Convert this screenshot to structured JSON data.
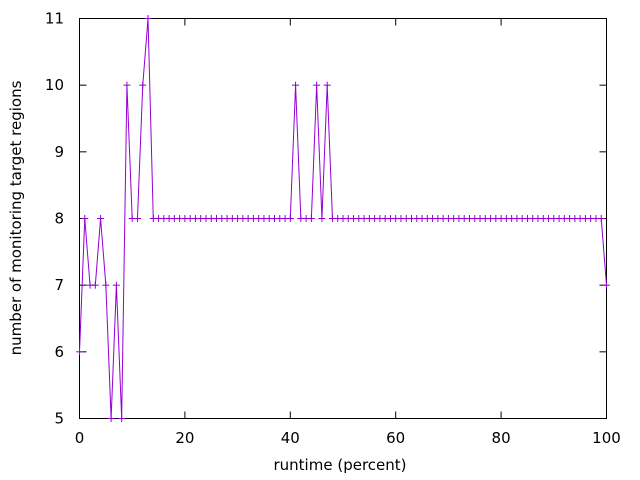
{
  "chart_data": {
    "type": "line",
    "title": "",
    "xlabel": "runtime (percent)",
    "ylabel": "number of monitoring target regions",
    "xlim": [
      0,
      100
    ],
    "ylim": [
      5,
      11
    ],
    "xticks": [
      0,
      20,
      40,
      60,
      80,
      100
    ],
    "yticks": [
      5,
      6,
      7,
      8,
      9,
      10,
      11
    ],
    "grid": false,
    "marker": "plus",
    "series": [
      {
        "color": "#9400d3",
        "x": [
          0,
          1,
          2,
          3,
          4,
          5,
          6,
          7,
          8,
          9,
          10,
          11,
          12,
          13,
          14,
          15,
          16,
          17,
          18,
          19,
          20,
          21,
          22,
          23,
          24,
          25,
          26,
          27,
          28,
          29,
          30,
          31,
          32,
          33,
          34,
          35,
          36,
          37,
          38,
          39,
          40,
          41,
          42,
          43,
          44,
          45,
          46,
          47,
          48,
          49,
          50,
          51,
          52,
          53,
          54,
          55,
          56,
          57,
          58,
          59,
          60,
          61,
          62,
          63,
          64,
          65,
          66,
          67,
          68,
          69,
          70,
          71,
          72,
          73,
          74,
          75,
          76,
          77,
          78,
          79,
          80,
          81,
          82,
          83,
          84,
          85,
          86,
          87,
          88,
          89,
          90,
          91,
          92,
          93,
          94,
          95,
          96,
          97,
          98,
          99,
          100
        ],
        "y": [
          6,
          8,
          7,
          7,
          8,
          7,
          5,
          7,
          5,
          10,
          8,
          8,
          10,
          11,
          8,
          8,
          8,
          8,
          8,
          8,
          8,
          8,
          8,
          8,
          8,
          8,
          8,
          8,
          8,
          8,
          8,
          8,
          8,
          8,
          8,
          8,
          8,
          8,
          8,
          8,
          8,
          10,
          8,
          8,
          8,
          10,
          8,
          10,
          8,
          8,
          8,
          8,
          8,
          8,
          8,
          8,
          8,
          8,
          8,
          8,
          8,
          8,
          8,
          8,
          8,
          8,
          8,
          8,
          8,
          8,
          8,
          8,
          8,
          8,
          8,
          8,
          8,
          8,
          8,
          8,
          8,
          8,
          8,
          8,
          8,
          8,
          8,
          8,
          8,
          8,
          8,
          8,
          8,
          8,
          8,
          8,
          8,
          8,
          8,
          8,
          7
        ]
      }
    ]
  }
}
